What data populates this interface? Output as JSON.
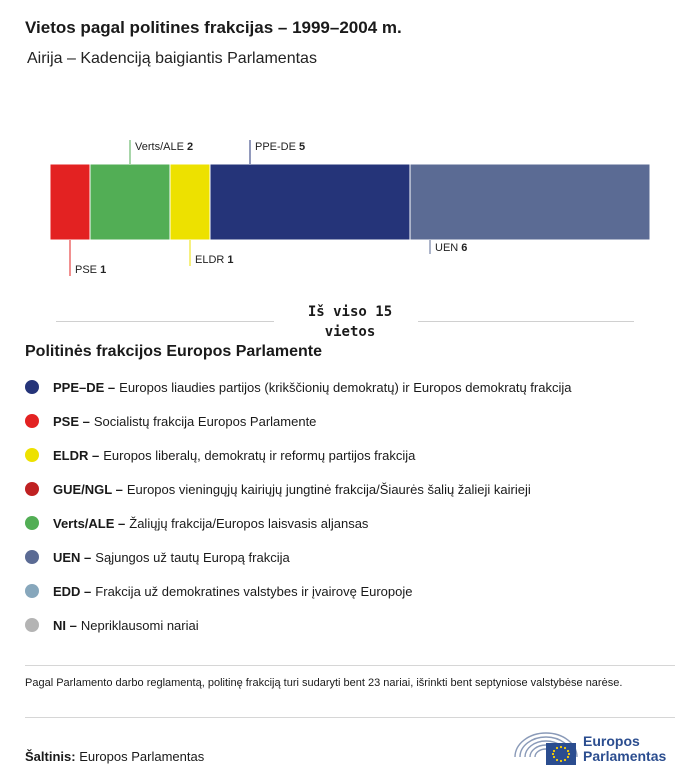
{
  "title": "Vietos pagal politines frakcijas – 1999–2004 m.",
  "subtitle": "Airija – Kadenciją baigiantis Parlamentas",
  "total": {
    "line1": "Iš viso 15",
    "line2": "vietos"
  },
  "chart_data": {
    "type": "bar",
    "orientation": "stacked-horizontal",
    "total": 15,
    "segments": [
      {
        "label": "PSE",
        "value": 1,
        "color": "#e32222",
        "callout": "below"
      },
      {
        "label": "Verts/ALE",
        "value": 2,
        "color": "#52ae55",
        "callout": "above"
      },
      {
        "label": "ELDR",
        "value": 1,
        "color": "#ede100",
        "callout": "below"
      },
      {
        "label": "PPE-DE",
        "value": 5,
        "color": "#253479",
        "callout": "above"
      },
      {
        "label": "UEN",
        "value": 6,
        "color": "#5b6b94",
        "callout": "below"
      }
    ]
  },
  "legend": {
    "heading": "Politinės frakcijos Europos Parlamente",
    "items": [
      {
        "abbr": "PPE–DE –",
        "text": "Europos liaudies partijos (krikščionių demokratų) ir Europos demokratų frakcija",
        "color": "#253479"
      },
      {
        "abbr": "PSE –",
        "text": "Socialistų frakcija Europos Parlamente",
        "color": "#e32222"
      },
      {
        "abbr": "ELDR –",
        "text": "Europos liberalų, demokratų ir reformų partijos frakcija",
        "color": "#ede100"
      },
      {
        "abbr": "GUE/NGL –",
        "text": "Europos vieningųjų kairiųjų jungtinė frakcija/Šiaurės šalių žalieji kairieji",
        "color": "#bf2122"
      },
      {
        "abbr": "Verts/ALE –",
        "text": "Žaliųjų frakcija/Europos laisvasis aljansas",
        "color": "#52ae55"
      },
      {
        "abbr": "UEN –",
        "text": "Sąjungos už tautų Europą frakcija",
        "color": "#5b6b94"
      },
      {
        "abbr": "EDD –",
        "text": "Frakcija už demokratines valstybes ir įvairovę Europoje",
        "color": "#87a7bc"
      },
      {
        "abbr": "NI –",
        "text": "Nepriklausomi nariai",
        "color": "#b4b4b4"
      }
    ]
  },
  "note": "Pagal Parlamento darbo reglamentą, politinę frakciją turi sudaryti bent 23 nariai, išrinkti bent septyniose valstybėse narėse.",
  "source": {
    "label": "Šaltinis:",
    "text": "Europos Parlamentas"
  },
  "logo": {
    "line1": "Europos",
    "line2": "Parlamentas"
  }
}
